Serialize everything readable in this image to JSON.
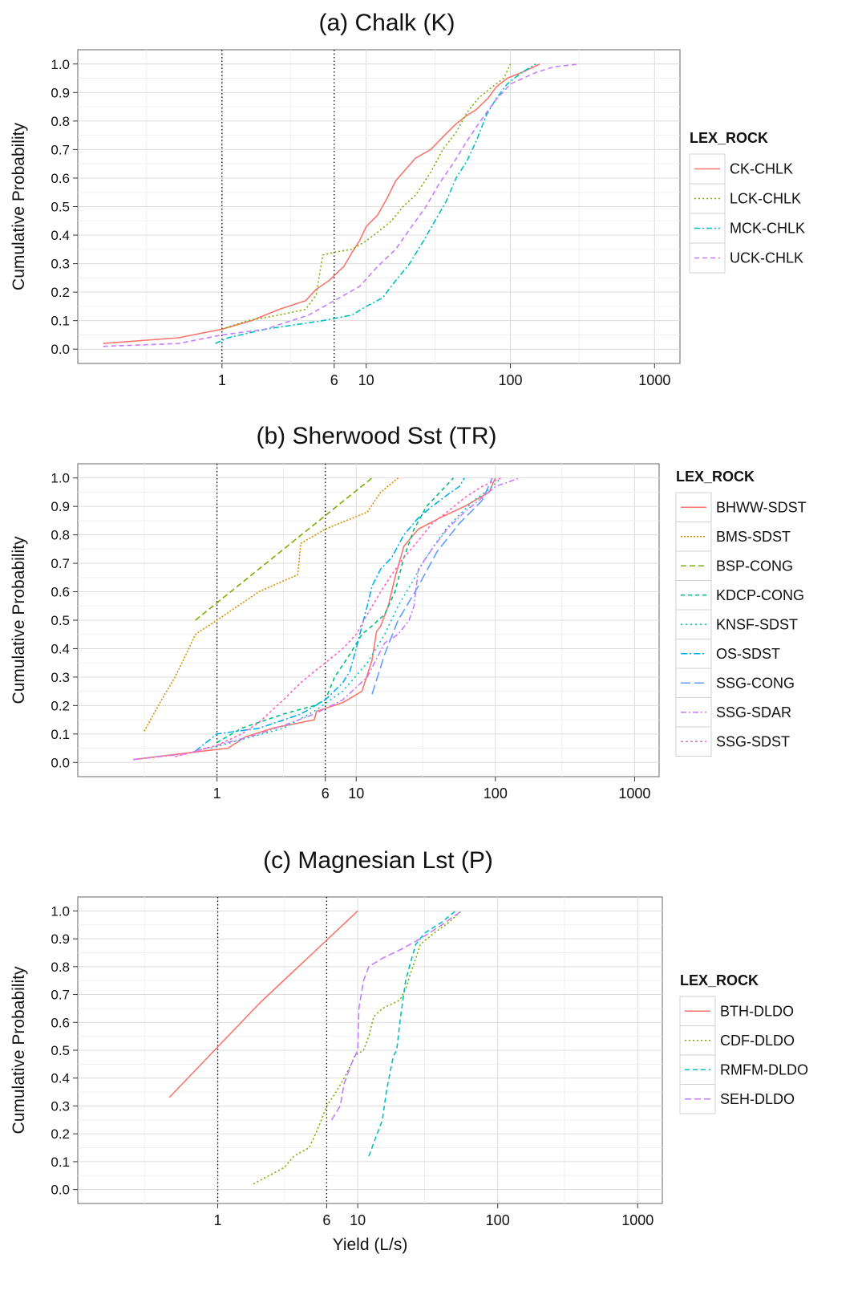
{
  "xlabel": "Yield (L/s)",
  "colors": {
    "red": "#F8766D",
    "orange": "#D89000",
    "olive": "#7CAE00",
    "green": "#00BF7D",
    "teal": "#00BFC4",
    "cyan": "#00B0F6",
    "blue": "#619CFF",
    "purple": "#C77CFF",
    "pink": "#FF62BC"
  },
  "chart_data": [
    {
      "type": "line",
      "title": "(a) Chalk (K)",
      "ylabel": "Cumulative Probability",
      "xlabel": "",
      "xscale": "log",
      "xlim": [
        0.1,
        1500
      ],
      "ylim": [
        -0.05,
        1.05
      ],
      "xticks": [
        1,
        6,
        10,
        100,
        1000
      ],
      "yticks": [
        "0.0",
        "0.1",
        "0.2",
        "0.3",
        "0.4",
        "0.5",
        "0.6",
        "0.7",
        "0.8",
        "0.9",
        "1.0"
      ],
      "vlines": [
        1,
        6
      ],
      "grid": true,
      "legend_title": "LEX_ROCK",
      "legend_position": "right",
      "series": [
        {
          "name": "CK-CHLK",
          "color": "#F8766D",
          "dash": "",
          "x": [
            0.15,
            0.5,
            1,
            1.6,
            2.5,
            3.8,
            4.5,
            5.5,
            7,
            8,
            9,
            10,
            12,
            14,
            16,
            18,
            22,
            28,
            35,
            42,
            50,
            58,
            70,
            80,
            95,
            120,
            160
          ],
          "y": [
            0.02,
            0.04,
            0.07,
            0.1,
            0.14,
            0.17,
            0.21,
            0.24,
            0.29,
            0.34,
            0.38,
            0.43,
            0.47,
            0.53,
            0.59,
            0.62,
            0.67,
            0.7,
            0.75,
            0.79,
            0.82,
            0.84,
            0.88,
            0.92,
            0.95,
            0.97,
            1.0
          ]
        },
        {
          "name": "LCK-CHLK",
          "color": "#7CAE00",
          "dash": "2,3",
          "x": [
            1,
            1.5,
            2.5,
            3.8,
            4.5,
            5,
            6,
            8,
            10,
            12,
            15,
            18,
            22,
            28,
            34,
            42,
            50,
            60,
            75,
            90,
            100
          ],
          "y": [
            0.07,
            0.1,
            0.12,
            0.14,
            0.19,
            0.33,
            0.34,
            0.35,
            0.38,
            0.41,
            0.45,
            0.5,
            0.54,
            0.62,
            0.7,
            0.76,
            0.83,
            0.88,
            0.92,
            0.95,
            1.0
          ]
        },
        {
          "name": "MCK-CHLK",
          "color": "#00BFC4",
          "dash": "7,3,2,3",
          "x": [
            0.9,
            1.1,
            2,
            5,
            8,
            10,
            13,
            16,
            20,
            25,
            30,
            36,
            42,
            50,
            58,
            68,
            80,
            95,
            120,
            150
          ],
          "y": [
            0.02,
            0.04,
            0.07,
            0.1,
            0.12,
            0.15,
            0.18,
            0.24,
            0.3,
            0.38,
            0.45,
            0.52,
            0.6,
            0.66,
            0.73,
            0.82,
            0.88,
            0.93,
            0.97,
            1.0
          ]
        },
        {
          "name": "UCK-CHLK",
          "color": "#C77CFF",
          "dash": "6,4",
          "x": [
            0.15,
            0.5,
            1,
            2,
            4,
            6,
            9,
            12,
            16,
            20,
            26,
            32,
            40,
            50,
            62,
            78,
            100,
            150,
            200,
            300
          ],
          "y": [
            0.01,
            0.02,
            0.05,
            0.07,
            0.12,
            0.17,
            0.22,
            0.29,
            0.35,
            0.42,
            0.5,
            0.58,
            0.65,
            0.73,
            0.8,
            0.87,
            0.93,
            0.97,
            0.99,
            1.0
          ]
        }
      ]
    },
    {
      "type": "line",
      "title": "(b) Sherwood Sst (TR)",
      "ylabel": "Cumulative Probability",
      "xlabel": "",
      "xscale": "log",
      "xlim": [
        0.1,
        1500
      ],
      "ylim": [
        -0.05,
        1.05
      ],
      "xticks": [
        1,
        6,
        10,
        100,
        1000
      ],
      "yticks": [
        "0.0",
        "0.1",
        "0.2",
        "0.3",
        "0.4",
        "0.5",
        "0.6",
        "0.7",
        "0.8",
        "0.9",
        "1.0"
      ],
      "vlines": [
        1,
        6
      ],
      "grid": true,
      "legend_title": "LEX_ROCK",
      "legend_position": "right",
      "series": [
        {
          "name": "BHWW-SDST",
          "color": "#F8766D",
          "dash": "",
          "x": [
            0.25,
            0.8,
            1.2,
            1.6,
            2.5,
            4,
            5,
            5.2,
            8,
            11,
            13,
            14,
            15,
            17,
            19,
            22,
            28,
            40,
            60,
            90,
            100
          ],
          "y": [
            0.01,
            0.04,
            0.05,
            0.09,
            0.12,
            0.14,
            0.15,
            0.18,
            0.21,
            0.25,
            0.36,
            0.46,
            0.48,
            0.55,
            0.65,
            0.76,
            0.82,
            0.86,
            0.9,
            0.95,
            1.0
          ]
        },
        {
          "name": "BMS-SDST",
          "color": "#D89000",
          "dash": "2,2",
          "x": [
            0.3,
            0.4,
            0.5,
            0.6,
            0.7,
            1,
            2,
            3.8,
            4,
            6,
            12,
            15,
            20
          ],
          "y": [
            0.11,
            0.22,
            0.3,
            0.38,
            0.45,
            0.5,
            0.6,
            0.66,
            0.77,
            0.82,
            0.88,
            0.95,
            1.0
          ]
        },
        {
          "name": "BSP-CONG",
          "color": "#7CAE00",
          "dash": "7,4",
          "x": [
            0.7,
            13
          ],
          "y": [
            0.5,
            1.0
          ]
        },
        {
          "name": "KDCP-CONG",
          "color": "#00BF7D",
          "dash": "5,4",
          "x": [
            1,
            1.5,
            3,
            5,
            6,
            7,
            9,
            11,
            13,
            16,
            19,
            22,
            26,
            32,
            40,
            50
          ],
          "y": [
            0.07,
            0.12,
            0.17,
            0.2,
            0.22,
            0.3,
            0.38,
            0.45,
            0.48,
            0.52,
            0.6,
            0.72,
            0.82,
            0.9,
            0.95,
            1.0
          ]
        },
        {
          "name": "KNSF-SDST",
          "color": "#00BFC4",
          "dash": "2,4",
          "x": [
            0.9,
            1.5,
            3,
            5,
            8,
            12,
            16,
            20,
            25,
            30,
            36,
            44,
            55,
            70,
            90,
            110
          ],
          "y": [
            0.05,
            0.08,
            0.12,
            0.18,
            0.25,
            0.35,
            0.45,
            0.55,
            0.63,
            0.7,
            0.76,
            0.82,
            0.87,
            0.92,
            0.96,
            1.0
          ]
        },
        {
          "name": "OS-SDST",
          "color": "#00B0F6",
          "dash": "8,3,2,3",
          "x": [
            0.7,
            1,
            2,
            4,
            6,
            8,
            9,
            10,
            11,
            12,
            13,
            15,
            18,
            22,
            28,
            35,
            45,
            55,
            60
          ],
          "y": [
            0.04,
            0.1,
            0.12,
            0.17,
            0.22,
            0.28,
            0.32,
            0.4,
            0.48,
            0.55,
            0.62,
            0.68,
            0.72,
            0.8,
            0.86,
            0.9,
            0.94,
            0.97,
            1.0
          ]
        },
        {
          "name": "SSG-CONG",
          "color": "#619CFF",
          "dash": "12,5",
          "x": [
            13,
            16,
            20,
            28,
            38,
            55,
            80,
            95
          ],
          "y": [
            0.24,
            0.38,
            0.5,
            0.62,
            0.74,
            0.84,
            0.92,
            1.0
          ]
        },
        {
          "name": "SSG-SDAR",
          "color": "#C77CFF",
          "dash": "7,3,2,3",
          "x": [
            0.25,
            0.6,
            1,
            2,
            3,
            5,
            8,
            12,
            16,
            20,
            24,
            26,
            28,
            35,
            45,
            60,
            80,
            100,
            150
          ],
          "y": [
            0.01,
            0.03,
            0.06,
            0.1,
            0.13,
            0.17,
            0.22,
            0.3,
            0.42,
            0.45,
            0.5,
            0.55,
            0.68,
            0.75,
            0.82,
            0.88,
            0.93,
            0.97,
            1.0
          ]
        },
        {
          "name": "SSG-SDST",
          "color": "#FF62BC",
          "dash": "3,3",
          "x": [
            0.5,
            1,
            1.5,
            2,
            3,
            4,
            5,
            6,
            8,
            10,
            12,
            15,
            18,
            22,
            28,
            35,
            45,
            60,
            80,
            110
          ],
          "y": [
            0.02,
            0.06,
            0.1,
            0.14,
            0.22,
            0.28,
            0.32,
            0.35,
            0.4,
            0.45,
            0.52,
            0.6,
            0.66,
            0.72,
            0.78,
            0.84,
            0.88,
            0.93,
            0.97,
            1.0
          ]
        }
      ]
    },
    {
      "type": "line",
      "title": "(c) Magnesian Lst (P)",
      "ylabel": "Cumulative Probability",
      "xlabel": "Yield (L/s)",
      "xscale": "log",
      "xlim": [
        0.1,
        1500
      ],
      "ylim": [
        -0.05,
        1.05
      ],
      "xticks": [
        1,
        6,
        10,
        100,
        1000
      ],
      "yticks": [
        "0.0",
        "0.1",
        "0.2",
        "0.3",
        "0.4",
        "0.5",
        "0.6",
        "0.7",
        "0.8",
        "0.9",
        "1.0"
      ],
      "vlines": [
        1,
        6
      ],
      "grid": true,
      "legend_title": "LEX_ROCK",
      "legend_position": "right",
      "series": [
        {
          "name": "BTH-DLDO",
          "color": "#F8766D",
          "dash": "",
          "x": [
            0.45,
            2,
            10
          ],
          "y": [
            0.33,
            0.67,
            1.0
          ]
        },
        {
          "name": "CDF-DLDO",
          "color": "#7CAE00",
          "dash": "2,3",
          "x": [
            1.8,
            3,
            3.5,
            4.5,
            5,
            5.5,
            6,
            7,
            8,
            9,
            9.5,
            11,
            12,
            13,
            15,
            20,
            22,
            24,
            26,
            28,
            35,
            45,
            55
          ],
          "y": [
            0.02,
            0.08,
            0.12,
            0.15,
            0.2,
            0.25,
            0.3,
            0.35,
            0.4,
            0.45,
            0.48,
            0.5,
            0.55,
            0.62,
            0.65,
            0.68,
            0.72,
            0.78,
            0.83,
            0.88,
            0.92,
            0.96,
            1.0
          ]
        },
        {
          "name": "RMFM-DLDO",
          "color": "#00BFC4",
          "dash": "6,4",
          "x": [
            12,
            15,
            16,
            17,
            18,
            19,
            20,
            21,
            22,
            24,
            26,
            30,
            40,
            50
          ],
          "y": [
            0.12,
            0.25,
            0.35,
            0.42,
            0.48,
            0.5,
            0.6,
            0.68,
            0.75,
            0.82,
            0.88,
            0.92,
            0.96,
            1.0
          ]
        },
        {
          "name": "SEH-DLDO",
          "color": "#C77CFF",
          "dash": "8,4",
          "x": [
            6.5,
            7.5,
            8,
            9,
            10,
            10.2,
            11,
            12,
            15,
            20,
            28,
            40,
            55
          ],
          "y": [
            0.25,
            0.3,
            0.38,
            0.45,
            0.5,
            0.65,
            0.75,
            0.8,
            0.83,
            0.86,
            0.9,
            0.95,
            1.0
          ]
        }
      ]
    }
  ]
}
